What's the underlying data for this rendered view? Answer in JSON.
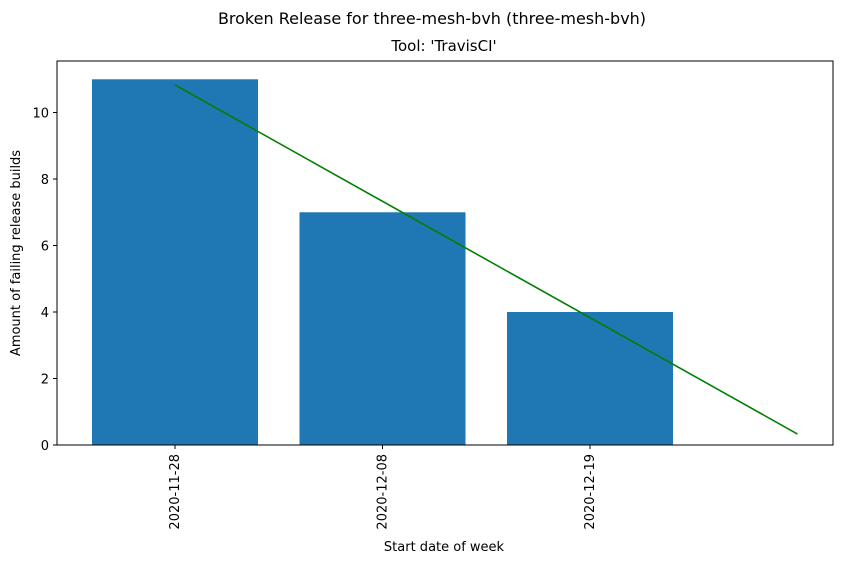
{
  "chart_data": {
    "type": "bar",
    "title": "Broken Release for three-mesh-bvh (three-mesh-bvh)",
    "subtitle": "Tool: 'TravisCI'",
    "xlabel": "Start date of week",
    "ylabel": "Amount of failing release builds",
    "categories": [
      "2020-11-28",
      "2020-12-08",
      "2020-12-19"
    ],
    "values": [
      11,
      7,
      4
    ],
    "bar_color": "#1f77b4",
    "ylim": [
      0,
      11.55
    ],
    "yticks": [
      0,
      2,
      4,
      6,
      8,
      10
    ],
    "trend_line": {
      "color": "#008000",
      "x_index": [
        0,
        3
      ],
      "y": [
        10.83,
        0.33
      ]
    },
    "grid": false,
    "legend": "none"
  }
}
